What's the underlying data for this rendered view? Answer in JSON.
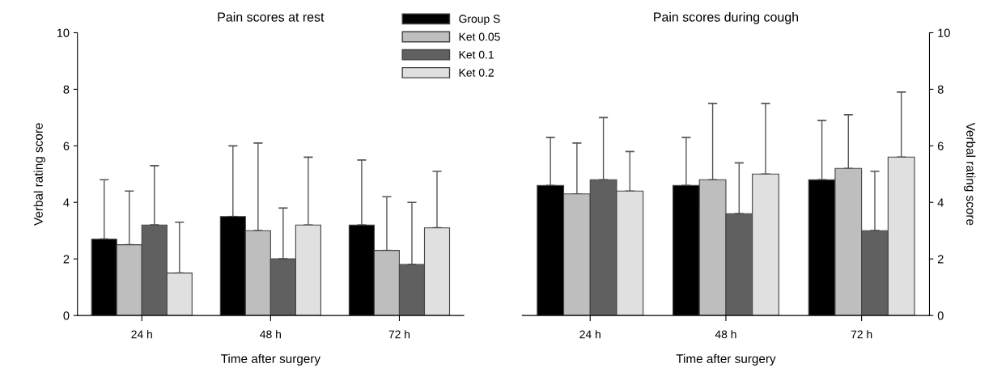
{
  "chart_data": [
    {
      "type": "bar",
      "title": "Pain scores at rest",
      "xlabel": "Time after surgery",
      "ylabel": "Verbal rating score",
      "categories": [
        "24 h",
        "48 h",
        "72 h"
      ],
      "ylim": [
        0,
        10
      ],
      "yticks": [
        0,
        2,
        4,
        6,
        8,
        10
      ],
      "grid": false,
      "legend": "top right",
      "series": [
        {
          "name": "Group S",
          "color": "#000000",
          "values": [
            2.7,
            3.5,
            3.2
          ],
          "errors": [
            [
              2.7,
              4.8
            ],
            [
              3.5,
              6.0
            ],
            [
              3.2,
              5.5
            ]
          ]
        },
        {
          "name": "Ket 0.05",
          "color": "#bebebe",
          "values": [
            2.5,
            3.0,
            2.3
          ],
          "errors": [
            [
              2.5,
              4.4
            ],
            [
              3.0,
              6.1
            ],
            [
              2.3,
              4.2
            ]
          ]
        },
        {
          "name": "Ket 0.1",
          "color": "#606060",
          "values": [
            3.2,
            2.0,
            1.8
          ],
          "errors": [
            [
              3.2,
              5.3
            ],
            [
              2.0,
              3.8
            ],
            [
              1.8,
              4.0
            ]
          ]
        },
        {
          "name": "Ket 0.2",
          "color": "#e0e0e0",
          "values": [
            1.5,
            3.2,
            3.1
          ],
          "errors": [
            [
              1.5,
              3.3
            ],
            [
              3.2,
              5.6
            ],
            [
              3.1,
              5.1
            ]
          ]
        }
      ]
    },
    {
      "type": "bar",
      "title": "Pain scores during cough",
      "xlabel": "Time after surgery",
      "y2label": "Verbal rating score",
      "categories": [
        "24 h",
        "48 h",
        "72 h"
      ],
      "y2lim": [
        0,
        10
      ],
      "y2ticks": [
        0,
        2,
        4,
        6,
        8,
        10
      ],
      "grid": false,
      "series": [
        {
          "color": "#000000",
          "axis": "y2",
          "values": [
            4.6,
            4.6,
            4.8
          ],
          "errors": [
            [
              4.6,
              6.3
            ],
            [
              4.6,
              6.3
            ],
            [
              4.8,
              6.9
            ]
          ]
        },
        {
          "color": "#bebebe",
          "axis": "y2",
          "values": [
            4.3,
            4.8,
            5.2
          ],
          "errors": [
            [
              4.3,
              6.1
            ],
            [
              4.8,
              7.5
            ],
            [
              5.2,
              7.1
            ]
          ]
        },
        {
          "color": "#606060",
          "axis": "y2",
          "values": [
            4.8,
            3.6,
            3.0
          ],
          "errors": [
            [
              4.8,
              7.0
            ],
            [
              3.6,
              5.4
            ],
            [
              3.0,
              5.1
            ]
          ]
        },
        {
          "color": "#e0e0e0",
          "axis": "y2",
          "values": [
            4.4,
            5.0,
            5.6
          ],
          "errors": [
            [
              4.4,
              5.8
            ],
            [
              5.0,
              7.5
            ],
            [
              5.6,
              7.9
            ]
          ]
        }
      ]
    }
  ]
}
